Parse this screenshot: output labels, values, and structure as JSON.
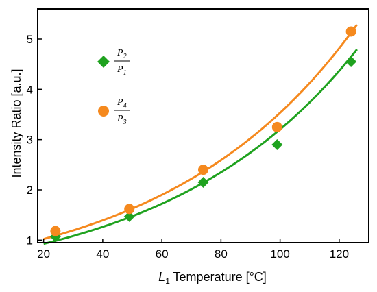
{
  "chart_data": {
    "type": "scatter",
    "xlabel": {
      "main": "L",
      "sub": "1",
      "rest": " Temperature [°C]"
    },
    "ylabel": "Intensity Ratio [a.u.]",
    "xlim": [
      18,
      130
    ],
    "ylim": [
      0.95,
      5.6
    ],
    "xticks": [
      20,
      40,
      60,
      80,
      100,
      120
    ],
    "yticks": [
      1,
      2,
      3,
      4,
      5
    ],
    "grid": false,
    "legend_position": "top-left",
    "series": [
      {
        "name": {
          "num": "P",
          "num_sub": "2",
          "den": "P",
          "den_sub": "1"
        },
        "marker": "diamond",
        "color": "#1fa21f",
        "x": [
          24,
          49,
          74,
          99,
          124
        ],
        "y": [
          1.07,
          1.47,
          2.15,
          2.9,
          4.55
        ],
        "fit_x": [
          20,
          126
        ],
        "fit_params": {
          "a": 0.68,
          "b": 0.0155
        }
      },
      {
        "name": {
          "num": "P",
          "num_sub": "4",
          "den": "P",
          "den_sub": "3"
        },
        "marker": "circle",
        "color": "#f5891e",
        "x": [
          24,
          49,
          74,
          99,
          124
        ],
        "y": [
          1.18,
          1.62,
          2.4,
          3.25,
          5.15
        ],
        "fit_x": [
          20,
          126
        ],
        "fit_params": {
          "a": 0.75,
          "b": 0.0155
        }
      }
    ]
  }
}
